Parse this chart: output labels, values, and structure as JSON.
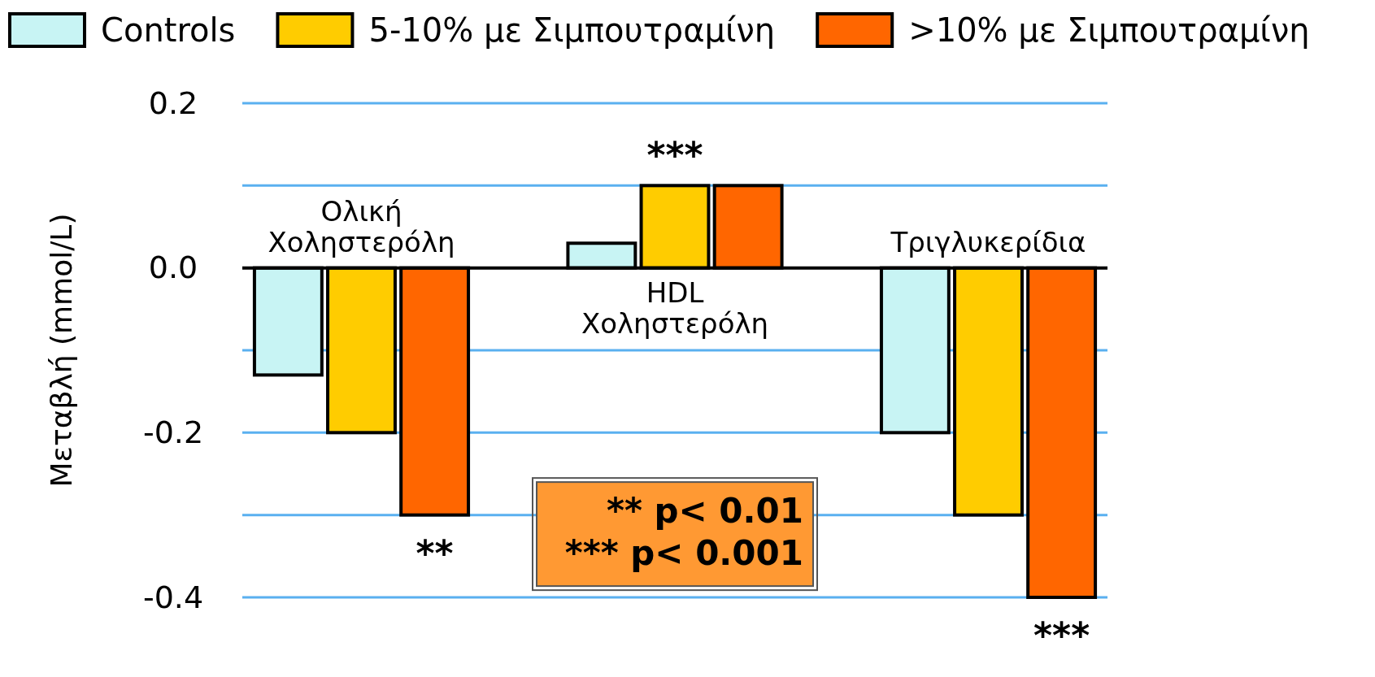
{
  "chart_data": {
    "type": "bar",
    "ylabel": "Μεταβλή  (mmol/L)",
    "categories": [
      "Ολική Χοληστερόλη",
      "HDL Χοληστερόλη",
      "Τριγλυκερίδια"
    ],
    "series": [
      {
        "name": "Controls",
        "color": "#c8f4f4",
        "values": [
          -0.13,
          0.03,
          -0.2
        ]
      },
      {
        "name": "5-10% με Σιμπουτραμίνη",
        "color": "#ffcc00",
        "values": [
          -0.2,
          0.1,
          -0.3
        ]
      },
      {
        "name": ">10% με Σιμπουτραμίνη",
        "color": "#ff6600",
        "values": [
          -0.3,
          0.1,
          -0.4
        ]
      }
    ],
    "ylim": [
      -0.4,
      0.2
    ],
    "yticks": [
      {
        "value": 0.2,
        "label": "0.2"
      },
      {
        "value": 0.1,
        "label": null
      },
      {
        "value": 0,
        "label": "0.0"
      },
      {
        "value": -0.1,
        "label": null
      },
      {
        "value": -0.2,
        "label": "-0.2"
      },
      {
        "value": -0.3,
        "label": null
      },
      {
        "value": -0.4,
        "label": "-0.4"
      }
    ],
    "grid": "y",
    "legend": "top",
    "annotations": [
      "**",
      "***",
      "***",
      "** p< 0.01",
      "*** p< 0.001"
    ]
  }
}
